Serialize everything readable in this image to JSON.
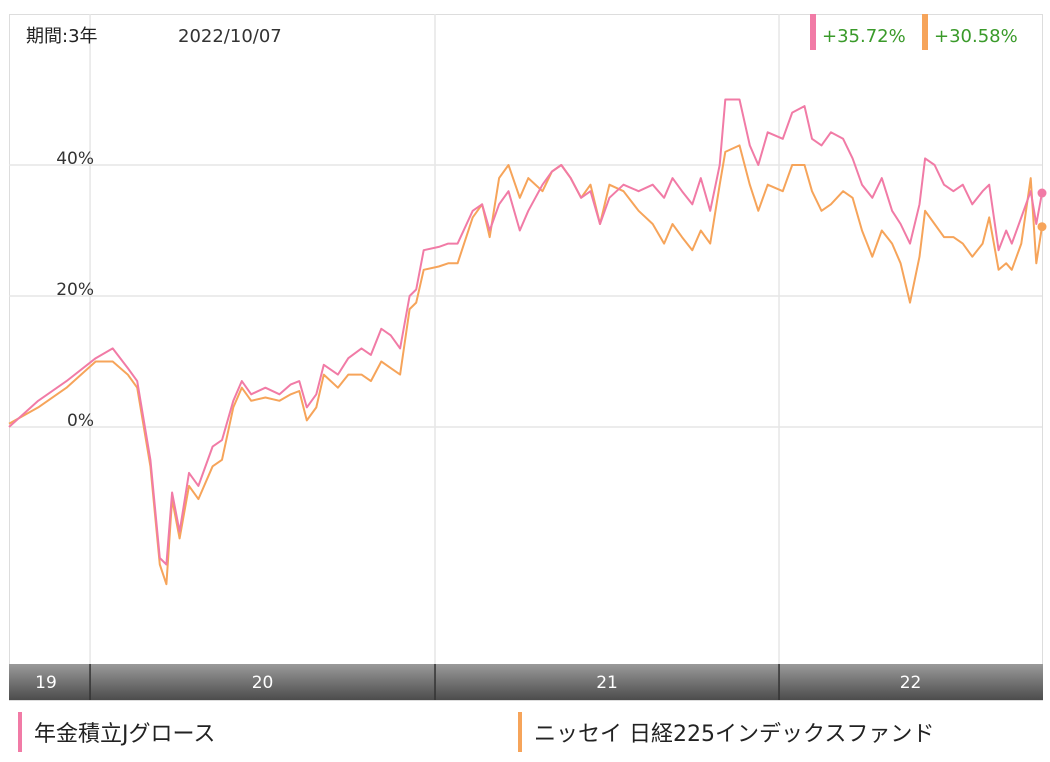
{
  "header": {
    "period_label": "期間:3年",
    "date": "2022/10/07"
  },
  "chart_data": {
    "type": "line",
    "y_unit": "%",
    "ylim": [
      -30,
      50
    ],
    "y_ticks": [
      {
        "value": 0,
        "label": "0%"
      },
      {
        "value": 20,
        "label": "20%"
      },
      {
        "value": 40,
        "label": "40%"
      }
    ],
    "x_start": "2019-10-07",
    "x_end": "2022-10-07",
    "x_ticks": [
      {
        "date": "2019-10-07",
        "label": "19"
      },
      {
        "date": "2020-01-01",
        "label": "20"
      },
      {
        "date": "2021-01-01",
        "label": "21"
      },
      {
        "date": "2022-01-01",
        "label": "22"
      }
    ],
    "grid": true,
    "series": [
      {
        "name": "年金積立Jグロース",
        "color": "#f17ba6",
        "final_label": "+35.72%",
        "points": [
          [
            "2019-10-07",
            0
          ],
          [
            "2019-11-07",
            4
          ],
          [
            "2019-12-07",
            7
          ],
          [
            "2020-01-07",
            10.5
          ],
          [
            "2020-01-25",
            12
          ],
          [
            "2020-02-10",
            9
          ],
          [
            "2020-02-20",
            7
          ],
          [
            "2020-03-05",
            -5
          ],
          [
            "2020-03-15",
            -20
          ],
          [
            "2020-03-22",
            -21
          ],
          [
            "2020-03-28",
            -10
          ],
          [
            "2020-04-05",
            -16
          ],
          [
            "2020-04-15",
            -7
          ],
          [
            "2020-04-25",
            -9
          ],
          [
            "2020-05-10",
            -3
          ],
          [
            "2020-05-20",
            -2
          ],
          [
            "2020-06-01",
            4
          ],
          [
            "2020-06-10",
            7
          ],
          [
            "2020-06-20",
            5
          ],
          [
            "2020-07-05",
            6
          ],
          [
            "2020-07-20",
            5
          ],
          [
            "2020-08-01",
            6.5
          ],
          [
            "2020-08-10",
            7
          ],
          [
            "2020-08-18",
            3
          ],
          [
            "2020-08-28",
            5
          ],
          [
            "2020-09-05",
            9.5
          ],
          [
            "2020-09-20",
            8
          ],
          [
            "2020-10-01",
            10.5
          ],
          [
            "2020-10-15",
            12
          ],
          [
            "2020-10-25",
            11
          ],
          [
            "2020-11-05",
            15
          ],
          [
            "2020-11-15",
            14
          ],
          [
            "2020-11-25",
            12
          ],
          [
            "2020-12-05",
            20
          ],
          [
            "2020-12-12",
            21
          ],
          [
            "2020-12-20",
            27
          ],
          [
            "2021-01-05",
            27.5
          ],
          [
            "2021-01-15",
            28
          ],
          [
            "2021-01-25",
            28
          ],
          [
            "2021-02-10",
            33
          ],
          [
            "2021-02-20",
            34
          ],
          [
            "2021-02-28",
            30
          ],
          [
            "2021-03-10",
            34
          ],
          [
            "2021-03-20",
            36
          ],
          [
            "2021-04-01",
            30
          ],
          [
            "2021-04-10",
            33
          ],
          [
            "2021-04-25",
            37
          ],
          [
            "2021-05-05",
            39
          ],
          [
            "2021-05-15",
            40
          ],
          [
            "2021-05-25",
            38
          ],
          [
            "2021-06-05",
            35
          ],
          [
            "2021-06-15",
            36
          ],
          [
            "2021-06-25",
            31
          ],
          [
            "2021-07-05",
            35
          ],
          [
            "2021-07-20",
            37
          ],
          [
            "2021-08-05",
            36
          ],
          [
            "2021-08-20",
            37
          ],
          [
            "2021-09-01",
            35
          ],
          [
            "2021-09-10",
            38
          ],
          [
            "2021-09-20",
            36
          ],
          [
            "2021-10-01",
            34
          ],
          [
            "2021-10-10",
            38
          ],
          [
            "2021-10-20",
            33
          ],
          [
            "2021-10-30",
            40
          ],
          [
            "2021-11-05",
            50
          ],
          [
            "2021-11-20",
            50
          ],
          [
            "2021-12-01",
            43
          ],
          [
            "2021-12-10",
            40
          ],
          [
            "2021-12-20",
            45
          ],
          [
            "2022-01-05",
            44
          ],
          [
            "2022-01-15",
            48
          ],
          [
            "2022-01-28",
            49
          ],
          [
            "2022-02-05",
            44
          ],
          [
            "2022-02-15",
            43
          ],
          [
            "2022-02-25",
            45
          ],
          [
            "2022-03-10",
            44
          ],
          [
            "2022-03-20",
            41
          ],
          [
            "2022-03-30",
            37
          ],
          [
            "2022-04-10",
            35
          ],
          [
            "2022-04-20",
            38
          ],
          [
            "2022-05-01",
            33
          ],
          [
            "2022-05-10",
            31
          ],
          [
            "2022-05-20",
            28
          ],
          [
            "2022-05-30",
            34
          ],
          [
            "2022-06-05",
            41
          ],
          [
            "2022-06-15",
            40
          ],
          [
            "2022-06-25",
            37
          ],
          [
            "2022-07-05",
            36
          ],
          [
            "2022-07-15",
            37
          ],
          [
            "2022-07-25",
            34
          ],
          [
            "2022-08-05",
            36
          ],
          [
            "2022-08-12",
            37
          ],
          [
            "2022-08-22",
            27
          ],
          [
            "2022-08-30",
            30
          ],
          [
            "2022-09-05",
            28
          ],
          [
            "2022-09-15",
            32
          ],
          [
            "2022-09-25",
            36
          ],
          [
            "2022-10-01",
            31
          ],
          [
            "2022-10-07",
            35.72
          ]
        ]
      },
      {
        "name": "ニッセイ 日経225インデックスファンド",
        "color": "#f6a45a",
        "final_label": "+30.58%",
        "points": [
          [
            "2019-10-07",
            0.5
          ],
          [
            "2019-11-07",
            3
          ],
          [
            "2019-12-07",
            6
          ],
          [
            "2020-01-07",
            10
          ],
          [
            "2020-01-25",
            10
          ],
          [
            "2020-02-10",
            8
          ],
          [
            "2020-02-20",
            6
          ],
          [
            "2020-03-05",
            -6
          ],
          [
            "2020-03-15",
            -21
          ],
          [
            "2020-03-22",
            -24
          ],
          [
            "2020-03-28",
            -11
          ],
          [
            "2020-04-05",
            -17
          ],
          [
            "2020-04-15",
            -9
          ],
          [
            "2020-04-25",
            -11
          ],
          [
            "2020-05-10",
            -6
          ],
          [
            "2020-05-20",
            -5
          ],
          [
            "2020-06-01",
            3
          ],
          [
            "2020-06-10",
            6
          ],
          [
            "2020-06-20",
            4
          ],
          [
            "2020-07-05",
            4.5
          ],
          [
            "2020-07-20",
            4
          ],
          [
            "2020-08-01",
            5
          ],
          [
            "2020-08-10",
            5.5
          ],
          [
            "2020-08-18",
            1
          ],
          [
            "2020-08-28",
            3
          ],
          [
            "2020-09-05",
            8
          ],
          [
            "2020-09-20",
            6
          ],
          [
            "2020-10-01",
            8
          ],
          [
            "2020-10-15",
            8
          ],
          [
            "2020-10-25",
            7
          ],
          [
            "2020-11-05",
            10
          ],
          [
            "2020-11-15",
            9
          ],
          [
            "2020-11-25",
            8
          ],
          [
            "2020-12-05",
            18
          ],
          [
            "2020-12-12",
            19
          ],
          [
            "2020-12-20",
            24
          ],
          [
            "2021-01-05",
            24.5
          ],
          [
            "2021-01-15",
            25
          ],
          [
            "2021-01-25",
            25
          ],
          [
            "2021-02-10",
            32
          ],
          [
            "2021-02-20",
            34
          ],
          [
            "2021-02-28",
            29
          ],
          [
            "2021-03-10",
            38
          ],
          [
            "2021-03-20",
            40
          ],
          [
            "2021-04-01",
            35
          ],
          [
            "2021-04-10",
            38
          ],
          [
            "2021-04-25",
            36
          ],
          [
            "2021-05-05",
            39
          ],
          [
            "2021-05-15",
            40
          ],
          [
            "2021-05-25",
            38
          ],
          [
            "2021-06-05",
            35
          ],
          [
            "2021-06-15",
            37
          ],
          [
            "2021-06-25",
            31
          ],
          [
            "2021-07-05",
            37
          ],
          [
            "2021-07-20",
            36
          ],
          [
            "2021-08-05",
            33
          ],
          [
            "2021-08-20",
            31
          ],
          [
            "2021-09-01",
            28
          ],
          [
            "2021-09-10",
            31
          ],
          [
            "2021-09-20",
            29
          ],
          [
            "2021-10-01",
            27
          ],
          [
            "2021-10-10",
            30
          ],
          [
            "2021-10-20",
            28
          ],
          [
            "2021-10-30",
            37
          ],
          [
            "2021-11-05",
            42
          ],
          [
            "2021-11-20",
            43
          ],
          [
            "2021-12-01",
            37
          ],
          [
            "2021-12-10",
            33
          ],
          [
            "2021-12-20",
            37
          ],
          [
            "2022-01-05",
            36
          ],
          [
            "2022-01-15",
            40
          ],
          [
            "2022-01-28",
            40
          ],
          [
            "2022-02-05",
            36
          ],
          [
            "2022-02-15",
            33
          ],
          [
            "2022-02-25",
            34
          ],
          [
            "2022-03-10",
            36
          ],
          [
            "2022-03-20",
            35
          ],
          [
            "2022-03-30",
            30
          ],
          [
            "2022-04-10",
            26
          ],
          [
            "2022-04-20",
            30
          ],
          [
            "2022-05-01",
            28
          ],
          [
            "2022-05-10",
            25
          ],
          [
            "2022-05-20",
            19
          ],
          [
            "2022-05-30",
            26
          ],
          [
            "2022-06-05",
            33
          ],
          [
            "2022-06-15",
            31
          ],
          [
            "2022-06-25",
            29
          ],
          [
            "2022-07-05",
            29
          ],
          [
            "2022-07-15",
            28
          ],
          [
            "2022-07-25",
            26
          ],
          [
            "2022-08-05",
            28
          ],
          [
            "2022-08-12",
            32
          ],
          [
            "2022-08-22",
            24
          ],
          [
            "2022-08-30",
            25
          ],
          [
            "2022-09-05",
            24
          ],
          [
            "2022-09-15",
            28
          ],
          [
            "2022-09-25",
            38
          ],
          [
            "2022-10-01",
            25
          ],
          [
            "2022-10-07",
            30.58
          ]
        ]
      }
    ]
  }
}
